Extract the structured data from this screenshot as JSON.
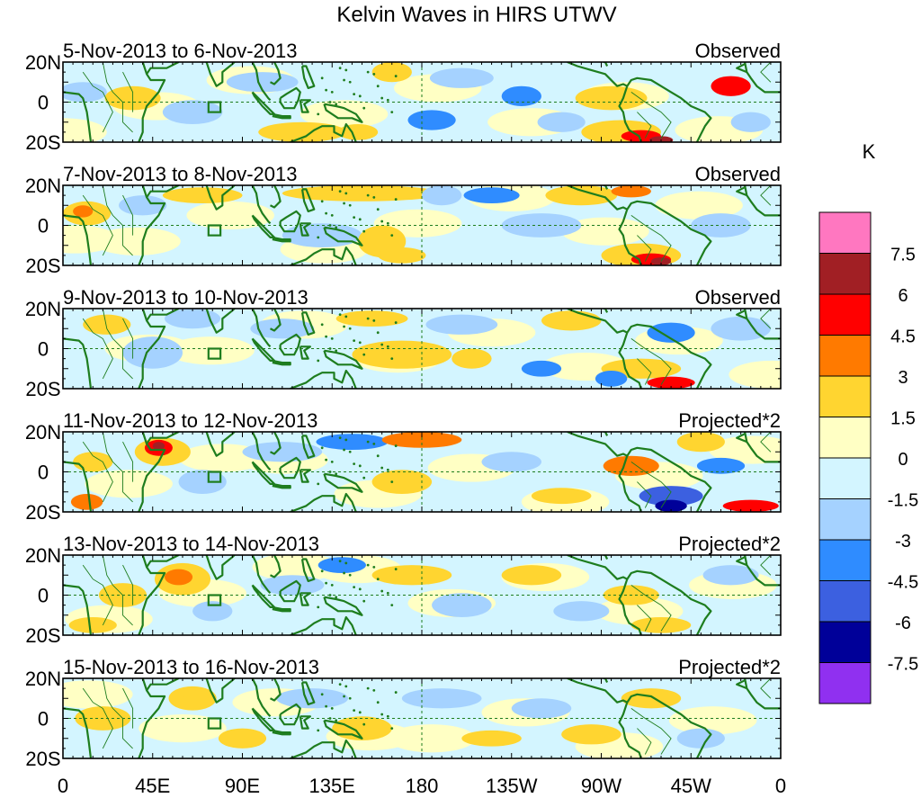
{
  "chart_data": {
    "type": "heatmap",
    "title": "Kelvin Waves in HIRS UTWV",
    "colorbar": {
      "units": "K",
      "levels": [
        "7.5",
        "6",
        "4.5",
        "3",
        "1.5",
        "0",
        "-1.5",
        "-3",
        "-4.5",
        "-6",
        "-7.5"
      ],
      "colors": [
        "#ff77c0",
        "#a11f24",
        "#ff0000",
        "#ff7a00",
        "#ffd530",
        "#ffffc4",
        "#d3f5ff",
        "#a5d2ff",
        "#2f8cff",
        "#3c60e0",
        "#000099",
        "#9030f0"
      ]
    },
    "x_axis": {
      "range_deg": [
        0,
        360
      ],
      "tick_positions_deg": [
        0,
        45,
        90,
        135,
        180,
        225,
        270,
        315,
        360
      ],
      "tick_labels": [
        "0",
        "45E",
        "90E",
        "135E",
        "180",
        "135W",
        "90W",
        "45W",
        "0"
      ]
    },
    "y_axis": {
      "range_deg": [
        -20,
        20
      ],
      "tick_positions_deg": [
        20,
        0,
        -20
      ],
      "tick_labels": [
        "20N",
        "0",
        "20S"
      ]
    },
    "panels": [
      {
        "date_range": "5-Nov-2013 to 6-Nov-2013",
        "type_label": "Observed",
        "blobs": [
          {
            "lon": 10,
            "lat": 5,
            "rx": 12,
            "ry": 5,
            "level": -1
          },
          {
            "lon": 35,
            "lat": 2,
            "rx": 14,
            "ry": 6,
            "level": 1
          },
          {
            "lon": 65,
            "lat": -5,
            "rx": 15,
            "ry": 6,
            "level": -1
          },
          {
            "lon": 100,
            "lat": 10,
            "rx": 18,
            "ry": 5,
            "level": -1
          },
          {
            "lon": 120,
            "lat": -15,
            "rx": 22,
            "ry": 5,
            "level": 1
          },
          {
            "lon": 148,
            "lat": -15,
            "rx": 10,
            "ry": 4,
            "level": 2
          },
          {
            "lon": 165,
            "lat": 15,
            "rx": 10,
            "ry": 5,
            "level": 1
          },
          {
            "lon": 200,
            "lat": 12,
            "rx": 16,
            "ry": 5,
            "level": -1
          },
          {
            "lon": 230,
            "lat": 3,
            "rx": 10,
            "ry": 5,
            "level": -2
          },
          {
            "lon": 185,
            "lat": -9,
            "rx": 12,
            "ry": 5,
            "level": -2
          },
          {
            "lon": 250,
            "lat": -10,
            "rx": 12,
            "ry": 5,
            "level": -1
          },
          {
            "lon": 275,
            "lat": 2,
            "rx": 18,
            "ry": 6,
            "level": 1
          },
          {
            "lon": 280,
            "lat": -15,
            "rx": 20,
            "ry": 6,
            "level": 2
          },
          {
            "lon": 290,
            "lat": -17,
            "rx": 10,
            "ry": 3,
            "level": 4
          },
          {
            "lon": 300,
            "lat": -19,
            "rx": 6,
            "ry": 2,
            "level": 5
          },
          {
            "lon": 335,
            "lat": 8,
            "rx": 10,
            "ry": 5,
            "level": 4
          },
          {
            "lon": 345,
            "lat": -10,
            "rx": 10,
            "ry": 5,
            "level": -1
          }
        ]
      },
      {
        "date_range": "7-Nov-2013 to 8-Nov-2013",
        "type_label": "Observed",
        "blobs": [
          {
            "lon": 12,
            "lat": 6,
            "rx": 12,
            "ry": 6,
            "level": 2
          },
          {
            "lon": 10,
            "lat": 7,
            "rx": 5,
            "ry": 3,
            "level": 3
          },
          {
            "lon": 40,
            "lat": 10,
            "rx": 12,
            "ry": 5,
            "level": -1
          },
          {
            "lon": 70,
            "lat": 15,
            "rx": 20,
            "ry": 4,
            "level": 1
          },
          {
            "lon": 150,
            "lat": 16,
            "rx": 40,
            "ry": 4,
            "level": 1
          },
          {
            "lon": 130,
            "lat": -5,
            "rx": 20,
            "ry": 6,
            "level": -1
          },
          {
            "lon": 160,
            "lat": -8,
            "rx": 12,
            "ry": 8,
            "level": 1
          },
          {
            "lon": 170,
            "lat": -15,
            "rx": 12,
            "ry": 4,
            "level": 2
          },
          {
            "lon": 190,
            "lat": 15,
            "rx": 10,
            "ry": 5,
            "level": -1
          },
          {
            "lon": 215,
            "lat": 15,
            "rx": 14,
            "ry": 4,
            "level": -2
          },
          {
            "lon": 240,
            "lat": 0,
            "rx": 20,
            "ry": 6,
            "level": -1
          },
          {
            "lon": 260,
            "lat": 15,
            "rx": 18,
            "ry": 5,
            "level": 1
          },
          {
            "lon": 285,
            "lat": 17,
            "rx": 10,
            "ry": 3,
            "level": 3
          },
          {
            "lon": 290,
            "lat": -15,
            "rx": 20,
            "ry": 6,
            "level": 2
          },
          {
            "lon": 295,
            "lat": -17,
            "rx": 10,
            "ry": 3,
            "level": 4
          },
          {
            "lon": 300,
            "lat": -18,
            "rx": 5,
            "ry": 2,
            "level": 5
          },
          {
            "lon": 330,
            "lat": 0,
            "rx": 15,
            "ry": 6,
            "level": -1
          }
        ]
      },
      {
        "date_range": "9-Nov-2013 to 10-Nov-2013",
        "type_label": "Observed",
        "blobs": [
          {
            "lon": 22,
            "lat": 12,
            "rx": 12,
            "ry": 5,
            "level": 2
          },
          {
            "lon": 45,
            "lat": -2,
            "rx": 15,
            "ry": 8,
            "level": -1
          },
          {
            "lon": 65,
            "lat": 15,
            "rx": 14,
            "ry": 5,
            "level": -1
          },
          {
            "lon": 110,
            "lat": 10,
            "rx": 16,
            "ry": 5,
            "level": -1
          },
          {
            "lon": 155,
            "lat": 15,
            "rx": 18,
            "ry": 4,
            "level": 1
          },
          {
            "lon": 170,
            "lat": -3,
            "rx": 25,
            "ry": 7,
            "level": 1
          },
          {
            "lon": 205,
            "lat": -5,
            "rx": 10,
            "ry": 5,
            "level": 2
          },
          {
            "lon": 200,
            "lat": 12,
            "rx": 18,
            "ry": 5,
            "level": -1
          },
          {
            "lon": 240,
            "lat": -10,
            "rx": 10,
            "ry": 4,
            "level": -2
          },
          {
            "lon": 255,
            "lat": 14,
            "rx": 15,
            "ry": 5,
            "level": 1
          },
          {
            "lon": 305,
            "lat": 8,
            "rx": 12,
            "ry": 5,
            "level": -2
          },
          {
            "lon": 290,
            "lat": -10,
            "rx": 20,
            "ry": 5,
            "level": 1
          },
          {
            "lon": 305,
            "lat": -17,
            "rx": 12,
            "ry": 3,
            "level": 4
          },
          {
            "lon": 275,
            "lat": -15,
            "rx": 8,
            "ry": 4,
            "level": -2
          },
          {
            "lon": 340,
            "lat": 10,
            "rx": 15,
            "ry": 6,
            "level": -1
          }
        ]
      },
      {
        "date_range": "11-Nov-2013 to 12-Nov-2013",
        "type_label": "Projected*2",
        "blobs": [
          {
            "lon": 12,
            "lat": -15,
            "rx": 8,
            "ry": 4,
            "level": 3
          },
          {
            "lon": 15,
            "lat": 5,
            "rx": 10,
            "ry": 5,
            "level": 1
          },
          {
            "lon": 50,
            "lat": 10,
            "rx": 14,
            "ry": 7,
            "level": 2
          },
          {
            "lon": 48,
            "lat": 12,
            "rx": 7,
            "ry": 4,
            "level": 4
          },
          {
            "lon": 48,
            "lat": 13,
            "rx": 3,
            "ry": 2,
            "level": 5
          },
          {
            "lon": 70,
            "lat": -5,
            "rx": 12,
            "ry": 6,
            "level": -1
          },
          {
            "lon": 110,
            "lat": 10,
            "rx": 20,
            "ry": 5,
            "level": -1
          },
          {
            "lon": 145,
            "lat": 15,
            "rx": 18,
            "ry": 4,
            "level": -2
          },
          {
            "lon": 180,
            "lat": 16,
            "rx": 20,
            "ry": 4,
            "level": 3
          },
          {
            "lon": 170,
            "lat": -5,
            "rx": 15,
            "ry": 6,
            "level": 1
          },
          {
            "lon": 225,
            "lat": 5,
            "rx": 15,
            "ry": 5,
            "level": -1
          },
          {
            "lon": 250,
            "lat": -12,
            "rx": 15,
            "ry": 4,
            "level": 1
          },
          {
            "lon": 285,
            "lat": 3,
            "rx": 14,
            "ry": 5,
            "level": 3
          },
          {
            "lon": 305,
            "lat": -12,
            "rx": 16,
            "ry": 5,
            "level": -3
          },
          {
            "lon": 305,
            "lat": -17,
            "rx": 8,
            "ry": 3,
            "level": -4
          },
          {
            "lon": 320,
            "lat": 15,
            "rx": 12,
            "ry": 5,
            "level": 2
          },
          {
            "lon": 345,
            "lat": -17,
            "rx": 14,
            "ry": 3,
            "level": 4
          },
          {
            "lon": 330,
            "lat": 3,
            "rx": 12,
            "ry": 4,
            "level": -2
          }
        ]
      },
      {
        "date_range": "13-Nov-2013 to 14-Nov-2013",
        "type_label": "Projected*2",
        "blobs": [
          {
            "lon": 15,
            "lat": -15,
            "rx": 12,
            "ry": 4,
            "level": 1
          },
          {
            "lon": 30,
            "lat": 0,
            "rx": 12,
            "ry": 6,
            "level": 1
          },
          {
            "lon": 60,
            "lat": 8,
            "rx": 14,
            "ry": 8,
            "level": 2
          },
          {
            "lon": 58,
            "lat": 9,
            "rx": 7,
            "ry": 4,
            "level": 3
          },
          {
            "lon": 75,
            "lat": -8,
            "rx": 10,
            "ry": 5,
            "level": -1
          },
          {
            "lon": 115,
            "lat": 5,
            "rx": 16,
            "ry": 5,
            "level": -1
          },
          {
            "lon": 140,
            "lat": 15,
            "rx": 12,
            "ry": 4,
            "level": -2
          },
          {
            "lon": 175,
            "lat": 10,
            "rx": 20,
            "ry": 5,
            "level": 1
          },
          {
            "lon": 200,
            "lat": -5,
            "rx": 15,
            "ry": 6,
            "level": -1
          },
          {
            "lon": 235,
            "lat": 10,
            "rx": 15,
            "ry": 5,
            "level": 1
          },
          {
            "lon": 260,
            "lat": -8,
            "rx": 14,
            "ry": 5,
            "level": -1
          },
          {
            "lon": 285,
            "lat": 0,
            "rx": 14,
            "ry": 5,
            "level": 1
          },
          {
            "lon": 300,
            "lat": -15,
            "rx": 15,
            "ry": 4,
            "level": 1
          },
          {
            "lon": 335,
            "lat": 10,
            "rx": 14,
            "ry": 5,
            "level": -1
          }
        ]
      },
      {
        "date_range": "15-Nov-2013 to 16-Nov-2013",
        "type_label": "Projected*2",
        "blobs": [
          {
            "lon": 20,
            "lat": 0,
            "rx": 14,
            "ry": 6,
            "level": 1
          },
          {
            "lon": 65,
            "lat": 10,
            "rx": 12,
            "ry": 6,
            "level": 1
          },
          {
            "lon": 66,
            "lat": 11,
            "rx": 6,
            "ry": 3,
            "level": 2
          },
          {
            "lon": 90,
            "lat": -10,
            "rx": 12,
            "ry": 5,
            "level": 1
          },
          {
            "lon": 125,
            "lat": 10,
            "rx": 18,
            "ry": 5,
            "level": -1
          },
          {
            "lon": 150,
            "lat": -5,
            "rx": 15,
            "ry": 6,
            "level": 1
          },
          {
            "lon": 190,
            "lat": 10,
            "rx": 20,
            "ry": 5,
            "level": -1
          },
          {
            "lon": 215,
            "lat": -10,
            "rx": 15,
            "ry": 4,
            "level": 1
          },
          {
            "lon": 240,
            "lat": 5,
            "rx": 15,
            "ry": 5,
            "level": -1
          },
          {
            "lon": 265,
            "lat": -8,
            "rx": 15,
            "ry": 5,
            "level": 1
          },
          {
            "lon": 295,
            "lat": 10,
            "rx": 15,
            "ry": 5,
            "level": 1
          },
          {
            "lon": 320,
            "lat": -10,
            "rx": 12,
            "ry": 5,
            "level": -1
          }
        ]
      }
    ]
  }
}
